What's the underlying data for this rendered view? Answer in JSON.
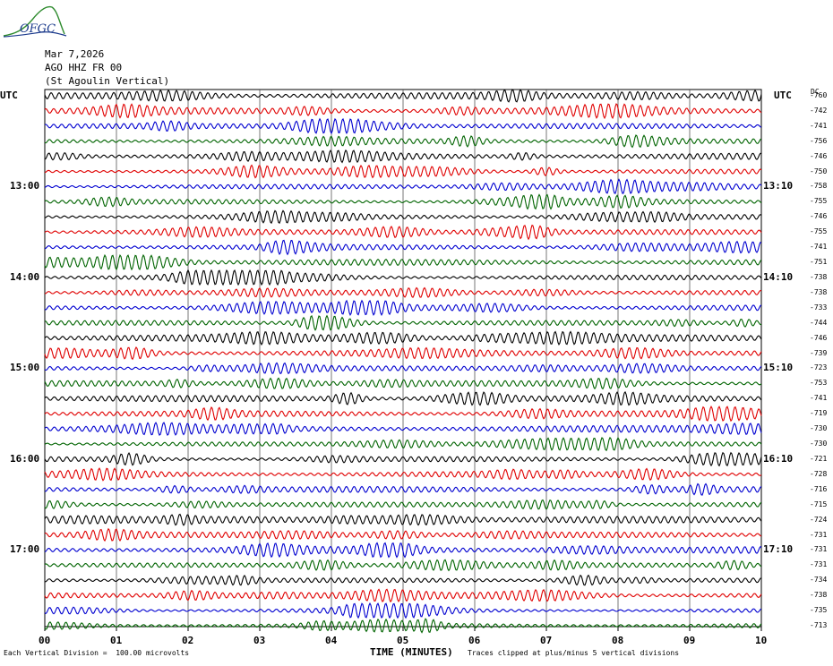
{
  "logo_text": "OFGC",
  "header": {
    "date": "Mar 7,2026",
    "station": "AGO HHZ FR 00",
    "location": "(St Agoulin Vertical)"
  },
  "left_tz": "UTC",
  "right_tz": "UTC",
  "dc_header": "DC",
  "footer": {
    "division_note": "Each Vertical Division =  100.00 microvolts",
    "axis_title": "TIME (MINUTES)",
    "clip_note": "Traces clipped at plus/minus 5 vertical divisions"
  },
  "colors": {
    "black": "#000000",
    "red": "#e00000",
    "blue": "#0000d0",
    "green": "#006400",
    "grid": "#000000"
  },
  "chart_data": {
    "type": "line",
    "xlabel": "TIME (MINUTES)",
    "x_ticks": [
      "00",
      "01",
      "02",
      "03",
      "04",
      "05",
      "06",
      "07",
      "08",
      "09",
      "10"
    ],
    "xlim": [
      0,
      10
    ],
    "trace_color_cycle": [
      "black",
      "red",
      "blue",
      "green"
    ],
    "left_time_labels": [
      {
        "row": 6,
        "text": "13:00"
      },
      {
        "row": 12,
        "text": "14:00"
      },
      {
        "row": 18,
        "text": "15:00"
      },
      {
        "row": 24,
        "text": "16:00"
      },
      {
        "row": 30,
        "text": "17:00"
      }
    ],
    "right_time_labels": [
      {
        "row": 6,
        "text": "13:10"
      },
      {
        "row": 12,
        "text": "14:10"
      },
      {
        "row": 18,
        "text": "15:10"
      },
      {
        "row": 24,
        "text": "16:10"
      },
      {
        "row": 30,
        "text": "17:10"
      }
    ],
    "dc_offsets": [
      "-760",
      "-742",
      "-741",
      "-756",
      "-746",
      "-750",
      "-758",
      "-755",
      "-746",
      "-755",
      "-741",
      "-751",
      "-738",
      "-738",
      "-733",
      "-744",
      "-746",
      "-739",
      "-723",
      "-753",
      "-741",
      "-719",
      "-730",
      "-730",
      "-721",
      "-728",
      "-716",
      "-715",
      "-724",
      "-731",
      "-731",
      "-731",
      "-734",
      "-738",
      "-735",
      "-713"
    ],
    "trace_count": 36,
    "clip_divisions": 5,
    "microvolts_per_division": 100
  }
}
